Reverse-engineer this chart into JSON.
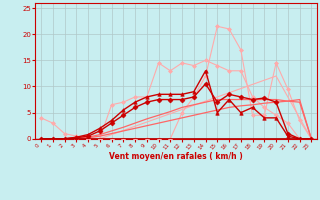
{
  "bg_color": "#c8eef0",
  "grid_color": "#b0c8c8",
  "xlabel": "Vent moyen/en rafales ( km/h )",
  "xlim": [
    -0.5,
    23.5
  ],
  "ylim": [
    0,
    26
  ],
  "yticks": [
    0,
    5,
    10,
    15,
    20,
    25
  ],
  "xticks": [
    0,
    1,
    2,
    3,
    4,
    5,
    6,
    7,
    8,
    9,
    10,
    11,
    12,
    13,
    14,
    15,
    16,
    17,
    18,
    19,
    20,
    21,
    22,
    23
  ],
  "lines": [
    {
      "x": [
        0,
        5,
        20,
        23
      ],
      "y": [
        0,
        0,
        12,
        0
      ],
      "color": "#ffaaaa",
      "lw": 0.8,
      "marker": null
    },
    {
      "x": [
        0,
        1,
        2,
        3,
        4,
        5,
        6,
        7,
        8,
        9,
        10,
        11,
        12,
        13,
        14,
        15,
        16,
        17,
        18,
        19,
        20,
        21,
        22,
        23
      ],
      "y": [
        4,
        3,
        1,
        0.5,
        0,
        0,
        6.5,
        7,
        8,
        8,
        14.5,
        13,
        14.5,
        14,
        15,
        14,
        13,
        13,
        8,
        6,
        4.5,
        3,
        0,
        0
      ],
      "color": "#ffaaaa",
      "lw": 0.8,
      "marker": "D",
      "markersize": 2
    },
    {
      "x": [
        0,
        1,
        2,
        3,
        4,
        5,
        6,
        7,
        8,
        9,
        10,
        11,
        12,
        13,
        14,
        15,
        16,
        17,
        18,
        19,
        20,
        21,
        22,
        23
      ],
      "y": [
        0,
        0,
        0,
        0,
        0,
        0,
        0,
        0,
        0,
        0,
        0,
        0,
        5,
        8,
        12,
        21.5,
        21,
        17,
        4.5,
        4.5,
        14.5,
        9.5,
        3.5,
        0
      ],
      "color": "#ffaaaa",
      "lw": 0.8,
      "marker": "D",
      "markersize": 2
    },
    {
      "x": [
        0,
        1,
        2,
        3,
        4,
        5,
        6,
        7,
        8,
        9,
        10,
        11,
        12,
        13,
        14,
        15,
        16,
        17,
        18,
        19,
        20,
        21,
        22,
        23
      ],
      "y": [
        0,
        0,
        0,
        0,
        0.2,
        0.5,
        1,
        1.5,
        2,
        2.5,
        3,
        3.5,
        4,
        4.5,
        5,
        5.5,
        6,
        6.3,
        6.5,
        6.8,
        7,
        7.2,
        7.5,
        0
      ],
      "color": "#ff6666",
      "lw": 0.9,
      "marker": null
    },
    {
      "x": [
        0,
        1,
        2,
        3,
        4,
        5,
        6,
        7,
        8,
        9,
        10,
        11,
        12,
        13,
        14,
        15,
        16,
        17,
        18,
        19,
        20,
        21,
        22,
        23
      ],
      "y": [
        0,
        0,
        0,
        0,
        0.3,
        0.8,
        1.5,
        2.2,
        3,
        3.8,
        4.5,
        5.2,
        6,
        6.5,
        7,
        7.5,
        7.5,
        7.5,
        7.5,
        7.5,
        7.5,
        7.2,
        7,
        0
      ],
      "color": "#ff6666",
      "lw": 0.9,
      "marker": null
    },
    {
      "x": [
        0,
        1,
        2,
        3,
        4,
        5,
        6,
        7,
        8,
        9,
        10,
        11,
        12,
        13,
        14,
        15,
        16,
        17,
        18,
        19,
        20,
        21,
        22,
        23
      ],
      "y": [
        0,
        0,
        0,
        0.2,
        0.5,
        1.5,
        3,
        4.5,
        6,
        7,
        7.5,
        7.5,
        7.5,
        8,
        10.5,
        7,
        8.5,
        8,
        7.5,
        7.8,
        7,
        1,
        0,
        0
      ],
      "color": "#cc0000",
      "lw": 1.0,
      "marker": "D",
      "markersize": 2.5
    },
    {
      "x": [
        0,
        1,
        2,
        3,
        4,
        5,
        6,
        7,
        8,
        9,
        10,
        11,
        12,
        13,
        14,
        15,
        16,
        17,
        18,
        19,
        20,
        21,
        22,
        23
      ],
      "y": [
        0,
        0,
        0,
        0.3,
        0.8,
        2,
        3.5,
        5.5,
        7,
        8,
        8.5,
        8.5,
        8.5,
        9,
        13,
        5,
        7.5,
        5,
        6,
        4,
        4,
        0.5,
        0,
        0
      ],
      "color": "#cc0000",
      "lw": 1.0,
      "marker": "^",
      "markersize": 2.5
    },
    {
      "x": [
        0,
        23
      ],
      "y": [
        0,
        0
      ],
      "color": "#aa0000",
      "lw": 1.2,
      "marker": null
    }
  ]
}
